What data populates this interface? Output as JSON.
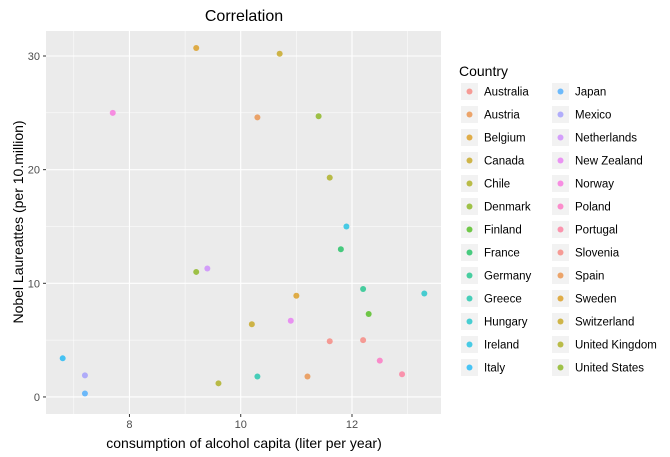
{
  "chart_data": {
    "type": "scatter",
    "title": "Correlation",
    "xlabel": "consumption of alcohol capita (liter per year)",
    "ylabel": "Nobel Laureattes (per 10.million)",
    "xlim": [
      6.5,
      13.6
    ],
    "ylim": [
      -1.5,
      32.2
    ],
    "xticks": [
      8,
      10,
      12
    ],
    "yticks": [
      0,
      10,
      20,
      30
    ],
    "grid": true,
    "legend": {
      "title": "Country",
      "placement": "right",
      "columns": 2
    },
    "series": [
      {
        "name": "Australia",
        "color": "#F8766D",
        "x": 12.2,
        "y": 5.0
      },
      {
        "name": "Austria",
        "color": "#EA8331",
        "x": 10.3,
        "y": 24.6
      },
      {
        "name": "Belgium",
        "color": "#D89000",
        "x": 11.0,
        "y": 8.9
      },
      {
        "name": "Canada",
        "color": "#C09B00",
        "x": 10.2,
        "y": 6.4
      },
      {
        "name": "Chile",
        "color": "#A3A500",
        "x": 9.6,
        "y": 1.2
      },
      {
        "name": "Denmark",
        "color": "#7CAE00",
        "x": 11.4,
        "y": 24.7
      },
      {
        "name": "Finland",
        "color": "#39B600",
        "x": 12.3,
        "y": 7.3
      },
      {
        "name": "France",
        "color": "#00BB4E",
        "x": 11.8,
        "y": 13.0
      },
      {
        "name": "Germany",
        "color": "#00BF7D",
        "x": 12.2,
        "y": 9.5
      },
      {
        "name": "Greece",
        "color": "#00C1A3",
        "x": 10.3,
        "y": 1.8
      },
      {
        "name": "Hungary",
        "color": "#00BFC4",
        "x": 13.3,
        "y": 9.1
      },
      {
        "name": "Ireland",
        "color": "#00BAE0",
        "x": 11.9,
        "y": 15.0
      },
      {
        "name": "Italy",
        "color": "#00B0F6",
        "x": 6.8,
        "y": 3.4
      },
      {
        "name": "Japan",
        "color": "#35A2FF",
        "x": 7.2,
        "y": 0.3
      },
      {
        "name": "Mexico",
        "color": "#9590FF",
        "x": 7.2,
        "y": 1.9
      },
      {
        "name": "Netherlands",
        "color": "#C77CFF",
        "x": 9.4,
        "y": 11.3
      },
      {
        "name": "New Zealand",
        "color": "#E76BF3",
        "x": 10.9,
        "y": 6.7
      },
      {
        "name": "Norway",
        "color": "#FA62DB",
        "x": 7.7,
        "y": 25.0
      },
      {
        "name": "Poland",
        "color": "#FF62BC",
        "x": 12.5,
        "y": 3.2
      },
      {
        "name": "Portugal",
        "color": "#FF6C91",
        "x": 12.9,
        "y": 2.0
      },
      {
        "name": "Slovenia",
        "color": "#F8766D",
        "x": 11.6,
        "y": 4.9
      },
      {
        "name": "Spain",
        "color": "#EA8331",
        "x": 11.2,
        "y": 1.8
      },
      {
        "name": "Sweden",
        "color": "#D89000",
        "x": 9.2,
        "y": 30.7
      },
      {
        "name": "Switzerland",
        "color": "#C09B00",
        "x": 10.7,
        "y": 30.2
      },
      {
        "name": "United Kingdom",
        "color": "#A3A500",
        "x": 11.6,
        "y": 19.3
      },
      {
        "name": "United States",
        "color": "#7CAE00",
        "x": 9.2,
        "y": 11.0
      }
    ]
  }
}
